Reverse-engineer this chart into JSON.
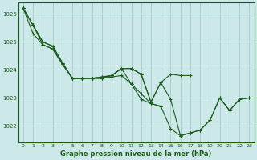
{
  "title": "Graphe pression niveau de la mer (hPa)",
  "background_color": "#cce8e8",
  "grid_color": "#aacece",
  "line_color": "#1a5c1a",
  "xlim": [
    -0.5,
    23.5
  ],
  "ylim": [
    1021.4,
    1026.4
  ],
  "yticks": [
    1022,
    1023,
    1024,
    1025,
    1026
  ],
  "xticks": [
    0,
    1,
    2,
    3,
    4,
    5,
    6,
    7,
    8,
    9,
    10,
    11,
    12,
    13,
    14,
    15,
    16,
    17,
    18,
    19,
    20,
    21,
    22,
    23
  ],
  "series": [
    {
      "x": [
        0,
        1,
        2,
        3,
        4,
        5,
        6,
        7,
        8,
        9,
        10,
        11,
        12,
        13,
        14,
        15,
        16,
        17,
        18,
        19,
        20,
        21,
        22,
        23
      ],
      "y": [
        1026.2,
        1025.6,
        1025.0,
        1024.85,
        1024.25,
        1023.7,
        1023.7,
        1023.7,
        1023.75,
        1023.8,
        1024.05,
        1023.5,
        1022.95,
        1022.8,
        1022.7,
        1021.9,
        1021.65,
        1021.75,
        1021.85,
        1022.2,
        1023.0,
        1022.55,
        1022.95,
        1023.0
      ]
    },
    {
      "x": [
        0,
        1,
        2,
        3,
        4,
        5,
        6,
        7,
        8,
        9,
        10,
        11,
        12,
        13,
        14,
        15,
        16,
        17
      ],
      "y": [
        1026.2,
        1025.6,
        1025.0,
        1024.85,
        1024.25,
        1023.7,
        1023.7,
        1023.7,
        1023.75,
        1023.8,
        1024.05,
        1024.05,
        1023.85,
        1022.85,
        1023.55,
        1023.85,
        1023.8,
        1023.8
      ]
    },
    {
      "x": [
        0,
        1,
        2,
        3,
        4,
        5,
        6,
        7,
        8,
        9,
        10,
        11,
        12,
        13,
        14
      ],
      "y": [
        1026.2,
        1025.6,
        1024.9,
        1024.75,
        1024.2,
        1023.7,
        1023.7,
        1023.7,
        1023.7,
        1023.75,
        1023.8,
        1023.5,
        1023.15,
        1022.8,
        1022.7
      ]
    },
    {
      "x": [
        0,
        1,
        2,
        3,
        4,
        5,
        6,
        7,
        8,
        9,
        10,
        11,
        12,
        13,
        14,
        15,
        16,
        17,
        18,
        19,
        20,
        21,
        22,
        23
      ],
      "y": [
        1026.2,
        1025.3,
        1024.9,
        1024.75,
        1024.2,
        1023.7,
        1023.7,
        1023.7,
        1023.7,
        1023.8,
        1024.05,
        1024.05,
        1023.85,
        1022.85,
        1023.55,
        1022.95,
        1021.65,
        1021.75,
        1021.85,
        1022.2,
        1023.0,
        1022.55,
        1022.95,
        1023.0
      ]
    }
  ]
}
